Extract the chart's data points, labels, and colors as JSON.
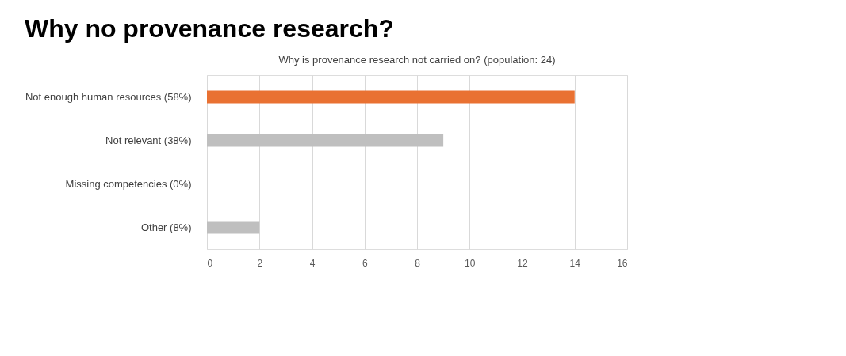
{
  "chart_data": {
    "type": "bar",
    "orientation": "horizontal",
    "title": "Why no provenance research?",
    "subtitle": "Why is provenance research not carried on? (population: 24)",
    "categories": [
      "Not enough human resources (58%)",
      "Not relevant (38%)",
      "Missing competencies (0%)",
      "Other (8%)"
    ],
    "values": [
      14,
      9,
      0,
      2
    ],
    "colors": [
      "#e97132",
      "#bfbfbf",
      "#bfbfbf",
      "#bfbfbf"
    ],
    "xlim": [
      0,
      16
    ],
    "xticks": [
      0,
      2,
      4,
      6,
      8,
      10,
      12,
      14,
      16
    ],
    "grid": "x"
  }
}
